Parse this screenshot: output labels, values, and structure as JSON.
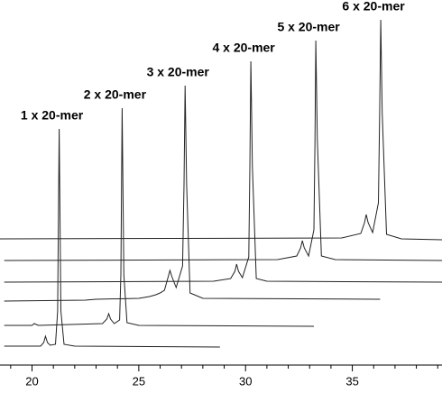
{
  "chart_data": {
    "type": "line",
    "xlim": [
      18.5,
      39.2
    ],
    "ylim": [
      0,
      405
    ],
    "xticks": [
      20,
      25,
      30,
      35
    ],
    "xminorticks": [
      19,
      21,
      22,
      23,
      24,
      26,
      27,
      28,
      29,
      31,
      32,
      33,
      34,
      36,
      37,
      38,
      39
    ],
    "series": [
      {
        "name": "1 x 20-mer",
        "color": "#222",
        "x": [
          18.7,
          20.4,
          20.55,
          20.63,
          20.72,
          20.85,
          21.1,
          21.2,
          21.27,
          21.35,
          21.5,
          22.0,
          28.8
        ],
        "values": [
          21,
          21,
          25,
          32,
          25,
          22,
          23,
          60,
          262,
          60,
          23,
          21,
          20
        ]
      },
      {
        "name": "2 x 20-mer",
        "color": "#222",
        "x": [
          18.7,
          20.0,
          20.1,
          20.3,
          23.3,
          23.5,
          23.59,
          23.68,
          23.85,
          24.1,
          24.16,
          24.22,
          24.3,
          24.45,
          25.0,
          33.2
        ],
        "values": [
          44,
          44,
          46,
          44,
          46,
          51,
          57,
          51,
          46,
          50,
          100,
          285,
          100,
          47,
          44,
          43
        ]
      },
      {
        "name": "3 x 20-mer",
        "color": "#222",
        "x": [
          18.7,
          22.5,
          23.0,
          25.0,
          25.5,
          25.8,
          26.0,
          26.2,
          26.38,
          26.46,
          26.55,
          26.75,
          27.05,
          27.12,
          27.17,
          27.24,
          27.4,
          28.0,
          36.3
        ],
        "values": [
          71,
          72,
          73,
          74,
          76,
          78,
          80,
          83,
          98,
          105,
          98,
          86,
          110,
          200,
          310,
          200,
          80,
          74,
          73
        ]
      },
      {
        "name": "4 x 20-mer",
        "color": "#222",
        "x": [
          18.7,
          28.5,
          29.3,
          29.5,
          29.58,
          29.67,
          29.85,
          30.15,
          30.2,
          30.25,
          30.32,
          30.5,
          31.0,
          39.2
        ],
        "values": [
          92,
          93,
          96,
          104,
          112,
          104,
          97,
          120,
          220,
          337,
          220,
          96,
          93,
          92
        ]
      },
      {
        "name": "5 x 20-mer",
        "color": "#222",
        "x": [
          18.7,
          31.5,
          32.4,
          32.58,
          32.66,
          32.75,
          32.95,
          33.2,
          33.25,
          33.29,
          33.36,
          33.55,
          34.2,
          39.2
        ],
        "values": [
          116,
          117,
          121,
          130,
          138,
          130,
          121,
          150,
          250,
          360,
          250,
          121,
          117,
          116
        ]
      },
      {
        "name": "6 x 20-mer",
        "color": "#222",
        "x": [
          18.5,
          34.5,
          35.4,
          35.57,
          35.65,
          35.74,
          35.95,
          36.22,
          36.28,
          36.33,
          36.4,
          36.6,
          37.3,
          39.2
        ],
        "values": [
          140,
          141,
          146,
          158,
          167,
          158,
          147,
          180,
          280,
          383,
          280,
          145,
          140,
          139
        ]
      }
    ]
  }
}
